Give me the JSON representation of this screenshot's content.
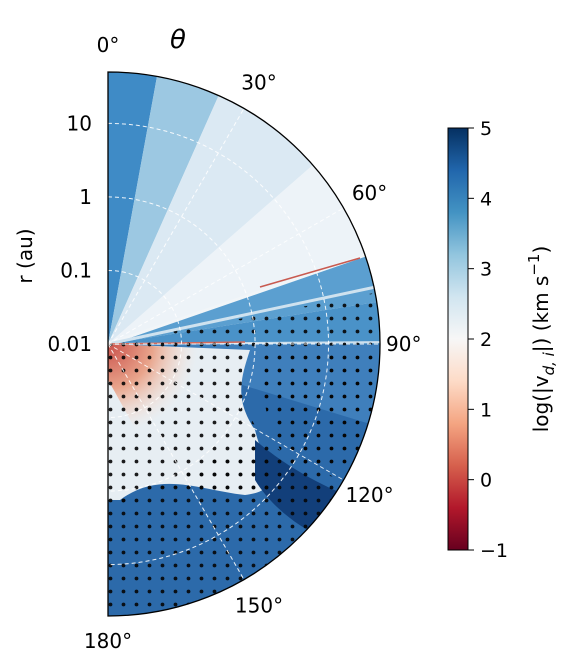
{
  "chart_data": {
    "type": "heatmap",
    "projection": "polar-half-disk",
    "angular_axis": {
      "symbol": "θ",
      "tick_labels": [
        "0°",
        "30°",
        "60°",
        "90°",
        "120°",
        "150°",
        "180°"
      ],
      "tick_values": [
        0,
        30,
        60,
        90,
        120,
        150,
        180
      ]
    },
    "radial_axis": {
      "label": "r (au)",
      "scale": "log",
      "tick_labels": [
        "0.01",
        "0.1",
        "1",
        "10"
      ],
      "tick_values": [
        0.01,
        0.1,
        1,
        10
      ],
      "range": [
        0.01,
        50
      ]
    },
    "colorbar": {
      "label": "log(|v",
      "label_sub": "d, i",
      "label_tail": "|) (km s",
      "label_sup": "−1",
      "label_close": ")",
      "range": [
        -1,
        5
      ],
      "tick_labels": [
        "−1",
        "0",
        "1",
        "2",
        "3",
        "4",
        "5"
      ],
      "tick_values": [
        -1,
        0,
        1,
        2,
        3,
        4,
        5
      ],
      "colormap": "RdBu",
      "colors": [
        "#67001f",
        "#b2182b",
        "#d6604d",
        "#f4a582",
        "#fddbc7",
        "#f7f7f7",
        "#d1e5f0",
        "#92c5de",
        "#4393c3",
        "#2166ac",
        "#053061"
      ]
    },
    "grid": true,
    "stippled_regions": "dotted hatching marks the supersonic region below the midplane and in the upper disk layers"
  }
}
